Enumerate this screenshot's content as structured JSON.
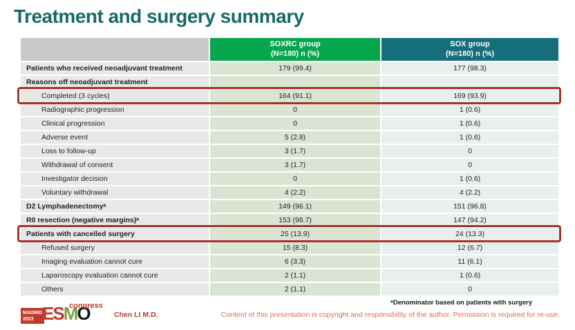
{
  "slide": {
    "title": "Treatment and surgery summary",
    "presenter": "Chen LI M.D.",
    "footnote": "ᵃDenominator based on patients with surgery",
    "copyright_notice": "Content of this presentation is copyright and responsibility of the author. Permission is required for re-use.",
    "logo": {
      "city": "MADRID",
      "year": "2023",
      "letters": [
        "E",
        "S",
        "M",
        "O"
      ],
      "suffix": "congress"
    }
  },
  "colors": {
    "title_teal": "#166b66",
    "header_green": "#06a64f",
    "header_teal": "#176e7b",
    "header_gray": "#c9c9c9",
    "label_column_bg": "#e8e8e8",
    "soxrc_column_bg": "#d9e5d2",
    "sox_column_bg": "#e8efec",
    "highlight_box_red": "#a93128",
    "copyright_red": "#dc6a62",
    "esmo_red": "#c0392b",
    "esmo_green": "#7ba23f"
  },
  "chart_data": {
    "type": "table",
    "title": "Treatment and surgery summary",
    "columns": {
      "label": {
        "line1": "",
        "line2": ""
      },
      "soxrc": {
        "line1": "SOXRC group",
        "line2": "(N=180)  n (%)"
      },
      "sox": {
        "line1": "SOX group",
        "line2": "(N=180)  n (%)"
      }
    },
    "rows": [
      {
        "label": "Patients who received neoadjuvant treatment",
        "bold": true,
        "indent": false,
        "highlight": false,
        "soxrc": "179 (99.4)",
        "sox": "177 (98.3)"
      },
      {
        "label": "Reasons off neoadjuvant treatment",
        "bold": true,
        "indent": false,
        "highlight": false,
        "soxrc": "",
        "sox": ""
      },
      {
        "label": "Completed (3 cycles)",
        "bold": false,
        "indent": true,
        "highlight": true,
        "soxrc": "164 (91.1)",
        "sox": "169 (93.9)"
      },
      {
        "label": "Radiographic progression",
        "bold": false,
        "indent": true,
        "highlight": false,
        "soxrc": "0",
        "sox": "1 (0.6)"
      },
      {
        "label": "Clinical progression",
        "bold": false,
        "indent": true,
        "highlight": false,
        "soxrc": "0",
        "sox": "1 (0.6)"
      },
      {
        "label": "Adverse event",
        "bold": false,
        "indent": true,
        "highlight": false,
        "soxrc": "5 (2.8)",
        "sox": "1 (0.6)"
      },
      {
        "label": "Loss to follow-up",
        "bold": false,
        "indent": true,
        "highlight": false,
        "soxrc": "3 (1.7)",
        "sox": "0"
      },
      {
        "label": "Withdrawal of consent",
        "bold": false,
        "indent": true,
        "highlight": false,
        "soxrc": "3 (1.7)",
        "sox": "0"
      },
      {
        "label": "Investigator decision",
        "bold": false,
        "indent": true,
        "highlight": false,
        "soxrc": "0",
        "sox": "1 (0.6)"
      },
      {
        "label": "Voluntary withdrawal",
        "bold": false,
        "indent": true,
        "highlight": false,
        "soxrc": "4 (2.2)",
        "sox": "4 (2.2)"
      },
      {
        "label": "D2 Lymphadenectomyᵃ",
        "bold": true,
        "indent": false,
        "highlight": false,
        "soxrc": "149 (96.1)",
        "sox": "151 (96.8)"
      },
      {
        "label": "R0 resection (negative margins)ᵃ",
        "bold": true,
        "indent": false,
        "highlight": false,
        "soxrc": "153 (98.7)",
        "sox": "147 (94.2)"
      },
      {
        "label": "Patients with cancelled surgery",
        "bold": true,
        "indent": false,
        "highlight": true,
        "soxrc": "25 (13.9)",
        "sox": "24 (13.3)"
      },
      {
        "label": "Refused surgery",
        "bold": false,
        "indent": true,
        "highlight": false,
        "soxrc": "15 (8.3)",
        "sox": "12 (6.7)"
      },
      {
        "label": "Imaging evaluation cannot cure",
        "bold": false,
        "indent": true,
        "highlight": false,
        "soxrc": "6 (3.3)",
        "sox": "11 (6.1)"
      },
      {
        "label": "Laparoscopy evaluation cannot cure",
        "bold": false,
        "indent": true,
        "highlight": false,
        "soxrc": "2 (1.1)",
        "sox": "1 (0.6)"
      },
      {
        "label": "Others",
        "bold": false,
        "indent": true,
        "highlight": false,
        "soxrc": "2 (1.1)",
        "sox": "0"
      }
    ]
  }
}
